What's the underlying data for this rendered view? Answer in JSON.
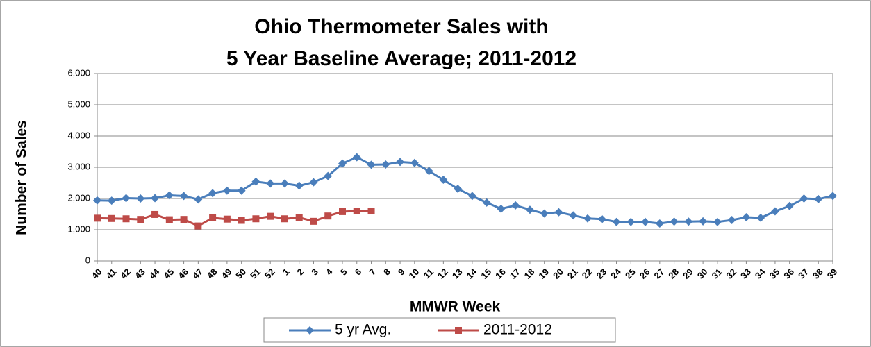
{
  "chart_data": {
    "type": "line",
    "title": [
      "Ohio Thermometer Sales with",
      "5 Year Baseline Average; 2011-2012"
    ],
    "x_label": "MMWR Week",
    "y_label": "Number of Sales",
    "categories": [
      "40",
      "41",
      "42",
      "43",
      "44",
      "45",
      "46",
      "47",
      "48",
      "49",
      "50",
      "51",
      "52",
      "1",
      "2",
      "3",
      "4",
      "5",
      "6",
      "7",
      "8",
      "9",
      "10",
      "11",
      "12",
      "13",
      "14",
      "15",
      "16",
      "17",
      "18",
      "19",
      "20",
      "21",
      "22",
      "23",
      "24",
      "25",
      "26",
      "27",
      "28",
      "29",
      "30",
      "31",
      "32",
      "33",
      "34",
      "35",
      "36",
      "37",
      "38",
      "39"
    ],
    "series": [
      {
        "name": "5 yr Avg.",
        "color": "#4a7ebb",
        "marker": "diamond",
        "values": [
          1940,
          1930,
          2010,
          2000,
          2010,
          2100,
          2080,
          1970,
          2170,
          2250,
          2250,
          2540,
          2480,
          2480,
          2410,
          2520,
          2720,
          3120,
          3320,
          3080,
          3090,
          3170,
          3140,
          2880,
          2600,
          2310,
          2080,
          1870,
          1670,
          1780,
          1640,
          1520,
          1560,
          1460,
          1360,
          1340,
          1250,
          1250,
          1250,
          1200,
          1260,
          1260,
          1270,
          1250,
          1310,
          1400,
          1380,
          1590,
          1760,
          2000,
          1980,
          2080
        ]
      },
      {
        "name": "2011-2012",
        "color": "#be4b48",
        "marker": "square",
        "values": [
          1370,
          1360,
          1350,
          1330,
          1490,
          1320,
          1330,
          1120,
          1380,
          1340,
          1300,
          1350,
          1430,
          1350,
          1390,
          1270,
          1440,
          1580,
          1600,
          1600,
          null,
          null,
          null,
          null,
          null,
          null,
          null,
          null,
          null,
          null,
          null,
          null,
          null,
          null,
          null,
          null,
          null,
          null,
          null,
          null,
          null,
          null,
          null,
          null,
          null,
          null,
          null,
          null,
          null,
          null,
          null,
          null
        ]
      }
    ],
    "ylim": [
      0,
      6000
    ],
    "yticks": [
      0,
      {
        "value": 1000,
        "label": "1,000"
      },
      {
        "value": 2000,
        "label": "2,000"
      },
      {
        "value": 3000,
        "label": "3,000"
      },
      {
        "value": 4000,
        "label": "4,000"
      },
      {
        "value": 5000,
        "label": "5,000"
      },
      {
        "value": 6000,
        "label": "6,000"
      }
    ],
    "grid": true,
    "legend": "bottom"
  }
}
